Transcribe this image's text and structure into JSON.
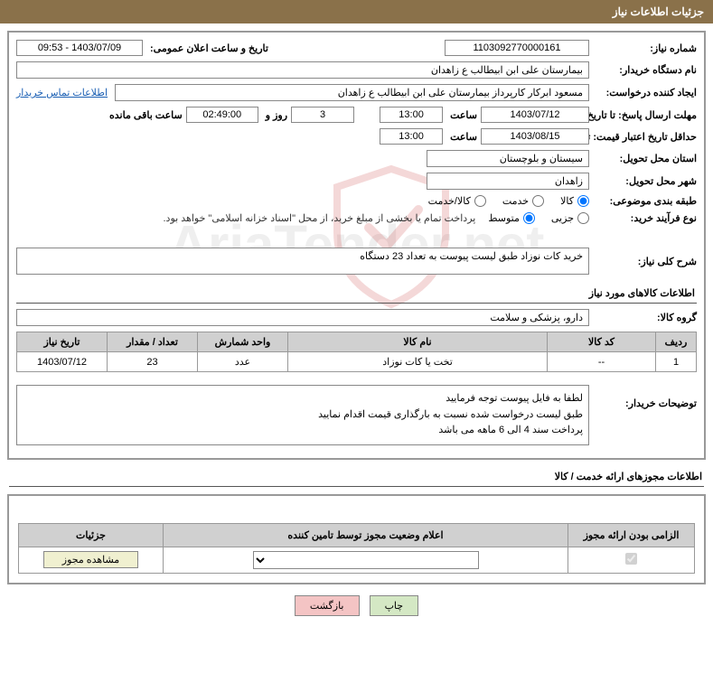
{
  "header": {
    "title": "جزئیات اطلاعات نیاز"
  },
  "fields": {
    "need_number_label": "شماره نیاز:",
    "need_number": "1103092770000161",
    "announce_label": "تاریخ و ساعت اعلان عمومی:",
    "announce_value": "1403/07/09 - 09:53",
    "buyer_label": "نام دستگاه خریدار:",
    "buyer_value": "بیمارستان علی ابن ابیطالب  ع  زاهدان",
    "requester_label": "ایجاد کننده درخواست:",
    "requester_value": "مسعود ابرکار کارپرداز بیمارستان علی ابن ابیطالب  ع  زاهدان",
    "contact_link": "اطلاعات تماس خریدار",
    "deadline_label": "مهلت ارسال پاسخ: تا تاریخ:",
    "deadline_date": "1403/07/12",
    "time_label": "ساعت",
    "deadline_time": "13:00",
    "days_value": "3",
    "days_and": "روز و",
    "countdown": "02:49:00",
    "remaining": "ساعت باقی مانده",
    "validity_label": "حداقل تاریخ اعتبار قیمت: تا تاریخ:",
    "validity_date": "1403/08/15",
    "validity_time": "13:00",
    "province_label": "استان محل تحویل:",
    "province_value": "سیستان و بلوچستان",
    "city_label": "شهر محل تحویل:",
    "city_value": "زاهدان",
    "category_label": "طبقه بندی موضوعی:",
    "cat_goods": "کالا",
    "cat_service": "خدمت",
    "cat_both": "کالا/خدمت",
    "process_label": "نوع فرآیند خرید:",
    "proc_partial": "جزیی",
    "proc_medium": "متوسط",
    "payment_note": "پرداخت تمام یا بخشی از مبلغ خرید، از محل \"اسناد خزانه اسلامی\" خواهد بود.",
    "summary_label": "شرح کلی نیاز:",
    "summary_value": "خرید کات نوزاد طبق لیست پیوست به تعداد 23 دستگاه",
    "goods_section": "اطلاعات کالاهای مورد نیاز",
    "group_label": "گروه کالا:",
    "group_value": "دارو، پزشکی و سلامت",
    "buyer_desc_label": "توضیحات خریدار:",
    "desc_line1": "لطفا به فایل پیوست توجه فرمایید",
    "desc_line2": "طبق لیست درخواست شده نسبت به بارگذاری قیمت اقدام نمایید",
    "desc_line3": "پرداخت سند 4 الی 6 ماهه می باشد"
  },
  "table": {
    "headers": {
      "row": "ردیف",
      "code": "کد کالا",
      "name": "نام کالا",
      "unit": "واحد شمارش",
      "qty": "تعداد / مقدار",
      "date": "تاریخ نیاز"
    },
    "rows": [
      {
        "row": "1",
        "code": "--",
        "name": "تخت یا کات نوزاد",
        "unit": "عدد",
        "qty": "23",
        "date": "1403/07/12"
      }
    ]
  },
  "license": {
    "section_title": "اطلاعات مجوزهای ارائه خدمت / کالا",
    "headers": {
      "mandatory": "الزامی بودن ارائه مجوز",
      "status": "اعلام وضعیت مجوز توسط تامین کننده",
      "details": "جزئیات"
    },
    "view_btn": "مشاهده مجوز"
  },
  "buttons": {
    "print": "چاپ",
    "back": "بازگشت"
  },
  "colors": {
    "header_bg": "#8a714a",
    "border": "#999999",
    "th_bg": "#d0d0d0",
    "btn_print": "#d4e8c4",
    "btn_back": "#f4c4c4",
    "btn_view": "#f0f0d0",
    "link": "#1a5fb4"
  }
}
